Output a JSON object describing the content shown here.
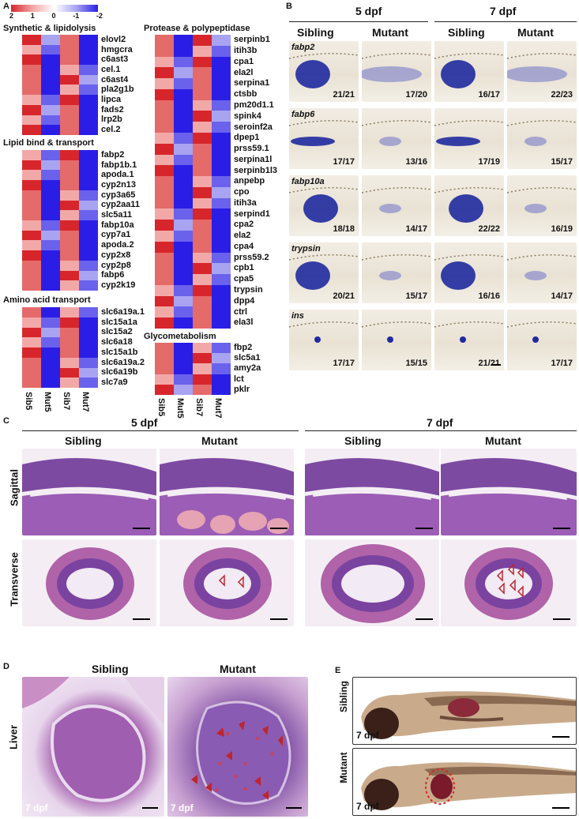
{
  "panelA": {
    "letter": "A",
    "legend": {
      "ticks": [
        "2",
        "1",
        "0",
        "-1",
        "-2"
      ]
    },
    "columns": [
      "Sib5",
      "Mut5",
      "Sib7",
      "Mut7"
    ],
    "groups": [
      {
        "title": "Synthetic & lipidolysis",
        "genes": [
          "elovl2",
          "hmgcra",
          "c6ast3",
          "cel.1",
          "c6ast4",
          "pla2g1b",
          "lipca",
          "fads2",
          "lrp2b",
          "cel.2"
        ]
      },
      {
        "title": "Lipid bind & transport",
        "genes": [
          "fabp2",
          "fabp1b.1",
          "apoda.1",
          "cyp2n13",
          "cyp3a65",
          "cyp2aa11",
          "slc5a11",
          "fabp10a",
          "cyp7a1",
          "apoda.2",
          "cyp2x8",
          "cyp2p8",
          "fabp6",
          "cyp2k19"
        ]
      },
      {
        "title": "Amino acid transport",
        "genes": [
          "slc6a19a.1",
          "slc15a1a",
          "slc15a2",
          "slc6a18",
          "slc15a1b",
          "slc6a19a.2",
          "slc6a19b",
          "slc7a9"
        ]
      },
      {
        "title": "Protease & polypeptidase",
        "genes": [
          "serpinb1",
          "itih3b",
          "cpa1",
          "ela2l",
          "serpina1",
          "ctsbb",
          "pm20d1.1",
          "spink4",
          "seroinf2a",
          "dpep1",
          "prss59.1",
          "serpina1l",
          "serpinb1l3",
          "anpebp",
          "cpo",
          "itih3a",
          "serpind1",
          "cpa2",
          "ela2",
          "cpa4",
          "prss59.2",
          "cpb1",
          "cpa5",
          "trypsin",
          "dpp4",
          "ctrl",
          "ela3l"
        ]
      },
      {
        "title": "Glycometabolism",
        "genes": [
          "fbp2",
          "slc5a1",
          "amy2a",
          "lct",
          "pklr"
        ]
      }
    ]
  },
  "panelB": {
    "letter": "B",
    "stages": [
      "5 dpf",
      "7 dpf"
    ],
    "conditions": [
      "Sibling",
      "Mutant",
      "Sibling",
      "Mutant"
    ],
    "rows": [
      {
        "gene": "fabp2",
        "fractions": [
          "21/21",
          "17/20",
          "16/17",
          "22/23"
        ]
      },
      {
        "gene": "fabp6",
        "fractions": [
          "17/17",
          "13/16",
          "17/19",
          "15/17"
        ]
      },
      {
        "gene": "fabp10a",
        "fractions": [
          "18/18",
          "14/17",
          "22/22",
          "16/19"
        ]
      },
      {
        "gene": "trypsin",
        "fractions": [
          "20/21",
          "15/17",
          "16/16",
          "14/17"
        ]
      },
      {
        "gene": "ins",
        "fractions": [
          "17/17",
          "15/15",
          "21/21",
          "17/17"
        ]
      }
    ]
  },
  "panelC": {
    "letter": "C",
    "stages": [
      "5 dpf",
      "7 dpf"
    ],
    "conditions": [
      "Sibling",
      "Mutant",
      "Sibling",
      "Mutant"
    ],
    "rows": [
      "Sagittal",
      "Transverse"
    ]
  },
  "panelD": {
    "letter": "D",
    "conditions": [
      "Sibling",
      "Mutant"
    ],
    "row": "Liver",
    "stage_tag": "7 dpf"
  },
  "panelE": {
    "letter": "E",
    "rows": [
      "Sibling",
      "Mutant"
    ],
    "stage_tag": "7 dpf"
  },
  "colors": {
    "red": "#d7262b",
    "blue": "#2a1ee6",
    "white": "#ffffff",
    "stain_blue": "#1f2a9e",
    "he_pink": "#c86aa8",
    "he_purple": "#5a2f86"
  }
}
